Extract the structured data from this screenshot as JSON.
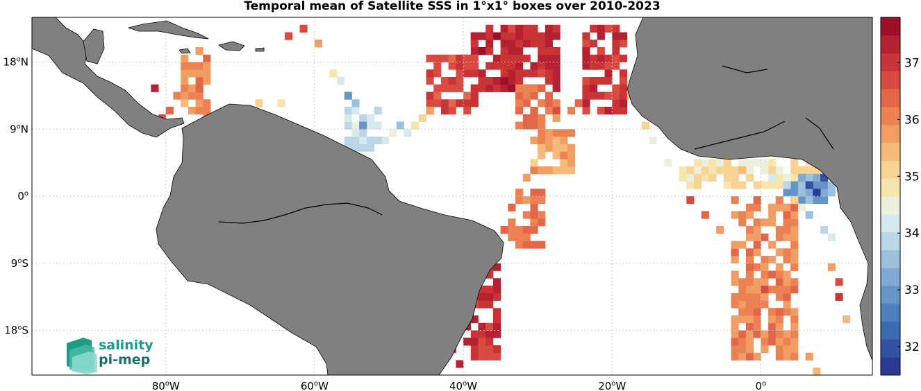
{
  "title": "Temporal mean of Satellite SSS in 1°x1° boxes over 2010-2023",
  "map": {
    "lon_range": [
      -98,
      15
    ],
    "lat_range": [
      -24,
      24
    ],
    "grid": true,
    "land_color": "#808080",
    "ocean_color": "#ffffff",
    "lon_ticks": [
      {
        "lon": -80,
        "num": "80",
        "hemi": "W"
      },
      {
        "lon": -60,
        "num": "60",
        "hemi": "W"
      },
      {
        "lon": -40,
        "num": "40",
        "hemi": "W"
      },
      {
        "lon": -20,
        "num": "20",
        "hemi": "W"
      },
      {
        "lon": 0,
        "num": "0",
        "hemi": ""
      }
    ],
    "lat_ticks": [
      {
        "lat": 18,
        "num": "18",
        "hemi": "N"
      },
      {
        "lat": 9,
        "num": "9",
        "hemi": "N"
      },
      {
        "lat": 0,
        "num": "0",
        "hemi": ""
      },
      {
        "lat": -9,
        "num": "9",
        "hemi": "S"
      },
      {
        "lat": -18,
        "num": "18",
        "hemi": "S"
      }
    ]
  },
  "colorbar": {
    "min": 31.5,
    "max": 37.8,
    "ticks": [
      32,
      33,
      34,
      35,
      36,
      37
    ],
    "colors": [
      "#2b3a92",
      "#3253a3",
      "#3c6ab0",
      "#4e7fbb",
      "#6595c7",
      "#80aad3",
      "#9dc0dd",
      "#bbd6e6",
      "#d6e9ee",
      "#ecf1de",
      "#f6e5ad",
      "#f8d394",
      "#f7ba7a",
      "#f29d64",
      "#ec8154",
      "#e36649",
      "#d94b40",
      "#ca3437",
      "#b42231",
      "#9e0f2a"
    ]
  },
  "chart_data": {
    "type": "heatmap",
    "title": "Temporal mean of Satellite SSS in 1°x1° boxes over 2010-2023",
    "xlabel": "",
    "ylabel": "",
    "x_range_lon": [
      -98,
      15
    ],
    "y_range_lat": [
      -24,
      24
    ],
    "value_range": [
      31.5,
      37.8
    ],
    "colorbar_ticks": [
      32,
      33,
      34,
      35,
      36,
      37
    ],
    "regions": [
      {
        "lon": [
          -39,
          -27
        ],
        "lat": [
          14,
          23
        ],
        "value": 37.2
      },
      {
        "lon": [
          -45,
          -38
        ],
        "lat": [
          11,
          19
        ],
        "value": 36.8
      },
      {
        "lon": [
          -24,
          -18
        ],
        "lat": [
          11,
          23
        ],
        "value": 37.0
      },
      {
        "lon": [
          -33,
          -27
        ],
        "lat": [
          9,
          15
        ],
        "value": 36.3
      },
      {
        "lon": [
          -31,
          -25
        ],
        "lat": [
          3,
          9
        ],
        "value": 35.7
      },
      {
        "lon": [
          -34,
          -29
        ],
        "lat": [
          -7,
          1
        ],
        "value": 36.2
      },
      {
        "lon": [
          -40,
          -35
        ],
        "lat": [
          -22,
          -8
        ],
        "value": 37.0
      },
      {
        "lon": [
          -78,
          -74
        ],
        "lat": [
          10,
          19
        ],
        "value": 35.9
      },
      {
        "lon": [
          -11,
          8
        ],
        "lat": [
          1,
          5
        ],
        "value": 34.8
      },
      {
        "lon": [
          3,
          10
        ],
        "lat": [
          -1,
          3
        ],
        "value": 33.2
      },
      {
        "lon": [
          -4,
          5
        ],
        "lat": [
          -22,
          0
        ],
        "value": 36.0
      },
      {
        "lon": [
          -56,
          -51
        ],
        "lat": [
          6,
          12
        ],
        "value": 34.0
      }
    ],
    "cells": [
      [
        -38.5,
        21.5,
        37.3
      ],
      [
        -37.5,
        21.5,
        37.4
      ],
      [
        -36.5,
        20.5,
        37.3
      ],
      [
        -35.5,
        21.5,
        37.5
      ],
      [
        -34.5,
        20.5,
        37.2
      ],
      [
        -33.5,
        19.5,
        37.2
      ],
      [
        -32.5,
        21.5,
        37.4
      ],
      [
        -31.5,
        18.5,
        37.0
      ],
      [
        -30.5,
        20.5,
        37.1
      ],
      [
        -29.5,
        16.5,
        36.8
      ],
      [
        -40.5,
        17.5,
        37.0
      ],
      [
        -41.5,
        15.5,
        36.9
      ],
      [
        -43.5,
        13.5,
        36.5
      ],
      [
        -44.5,
        11.5,
        35.9
      ],
      [
        -45.5,
        10.5,
        35.2
      ],
      [
        -46.5,
        9.5,
        34.8
      ],
      [
        -47.5,
        8.5,
        34.2
      ],
      [
        -48.5,
        9.5,
        33.6
      ],
      [
        -49.5,
        8.5,
        34.4
      ],
      [
        -50.5,
        7.5,
        34.2
      ],
      [
        -51.5,
        7.5,
        34.0
      ],
      [
        -52.5,
        6.5,
        33.8
      ],
      [
        -53.5,
        9.5,
        32.8
      ],
      [
        -54.5,
        12.5,
        33.4
      ],
      [
        -55.5,
        13.5,
        32.8
      ],
      [
        -56.5,
        15.5,
        34.3
      ],
      [
        -57.5,
        16.5,
        34.9
      ],
      [
        -59.5,
        20.5,
        35.8
      ],
      [
        -61.5,
        22.5,
        36.7
      ],
      [
        -63.5,
        21.5,
        36.6
      ],
      [
        -64.5,
        12.5,
        34.8
      ],
      [
        -67.5,
        12.5,
        35.0
      ],
      [
        -75.5,
        19.5,
        35.8
      ],
      [
        -76.5,
        17.5,
        36.0
      ],
      [
        -77.5,
        15.5,
        35.9
      ],
      [
        -78.5,
        13.5,
        36.1
      ],
      [
        -79.5,
        11.5,
        36.3
      ],
      [
        -80.5,
        10.5,
        36.6
      ],
      [
        -81.5,
        14.5,
        37.4
      ],
      [
        -23.5,
        19.5,
        37.2
      ],
      [
        -22.5,
        17.5,
        37.1
      ],
      [
        -21.5,
        15.5,
        36.9
      ],
      [
        -20.5,
        13.5,
        36.7
      ],
      [
        -24.5,
        12.5,
        36.4
      ],
      [
        -25.5,
        11.5,
        36.2
      ],
      [
        -27.5,
        10.5,
        35.9
      ],
      [
        -28.5,
        8.5,
        35.6
      ],
      [
        -29.5,
        6.5,
        35.4
      ],
      [
        -30.5,
        4.5,
        35.2
      ],
      [
        -31.5,
        2.5,
        35.6
      ],
      [
        -32.5,
        0.5,
        36.2
      ],
      [
        -33.5,
        -1.5,
        36.3
      ],
      [
        -34.5,
        -4.5,
        36.5
      ],
      [
        -35.5,
        -7.5,
        36.6
      ],
      [
        -36.5,
        -10.5,
        37.1
      ],
      [
        -37.5,
        -13.5,
        37.2
      ],
      [
        -38.5,
        -16.5,
        37.3
      ],
      [
        -39.5,
        -19.5,
        37.2
      ],
      [
        -40.5,
        -22.5,
        37.3
      ],
      [
        -41.5,
        -20.5,
        37.4
      ],
      [
        -17.5,
        13.5,
        35.4
      ],
      [
        -15.5,
        9.5,
        35.0
      ],
      [
        -14.5,
        7.5,
        34.6
      ],
      [
        -12.5,
        4.5,
        34.6
      ],
      [
        -10.5,
        3.5,
        34.8
      ],
      [
        -8.5,
        2.5,
        35.0
      ],
      [
        -6.5,
        3.5,
        34.9
      ],
      [
        -4.5,
        2.5,
        35.2
      ],
      [
        -2.5,
        3.5,
        35.3
      ],
      [
        -0.5,
        1.5,
        35.1
      ],
      [
        1.5,
        2.5,
        34.1
      ],
      [
        3.5,
        1.5,
        33.8
      ],
      [
        5.5,
        2.5,
        33.2
      ],
      [
        6.5,
        1.5,
        32.0
      ],
      [
        7.5,
        0.5,
        31.8
      ],
      [
        8.5,
        2.5,
        31.9
      ],
      [
        4.5,
        -0.5,
        35.1
      ],
      [
        5.5,
        -1.5,
        34.5
      ],
      [
        6.5,
        -2.5,
        33.6
      ],
      [
        8.5,
        -4.5,
        33.9
      ],
      [
        9.5,
        -5.5,
        34.3
      ],
      [
        -9.5,
        -0.5,
        36.6
      ],
      [
        -7.5,
        -2.5,
        36.4
      ],
      [
        -5.5,
        -4.5,
        35.9
      ],
      [
        -3.5,
        -6.5,
        35.7
      ],
      [
        -1.5,
        -9.5,
        36.4
      ],
      [
        0.5,
        -12.5,
        36.6
      ],
      [
        2.5,
        -15.5,
        36.4
      ],
      [
        4.5,
        -18.5,
        36.1
      ],
      [
        6.5,
        -21.5,
        35.7
      ],
      [
        7.5,
        -23.5,
        35.5
      ],
      [
        9.5,
        -9.5,
        35.9
      ],
      [
        10.5,
        -13.5,
        36.9
      ],
      [
        11.5,
        -16.5,
        35.3
      ],
      [
        10.5,
        -11.5,
        36.6
      ]
    ]
  },
  "logo": {
    "line1": "salinity",
    "line2": "pi-mep"
  }
}
